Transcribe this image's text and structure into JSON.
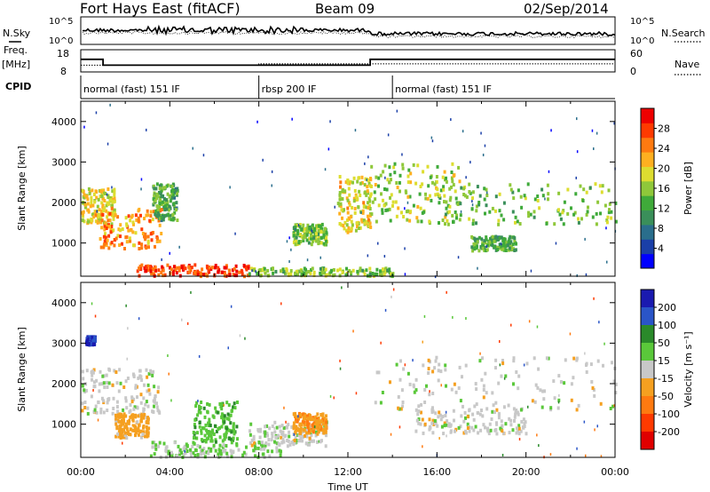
{
  "header": {
    "station": "Fort Hays East (fitACF)",
    "beam": "Beam 09",
    "date": "02/Sep/2014"
  },
  "summary": {
    "nsky_label": "N.Sky",
    "nsearch_label": "N.Search",
    "noise_ticks": [
      "10^5",
      "10^0"
    ],
    "freq_label": "Freq.",
    "freq_unit": "[MHz]",
    "freq_ticks": [
      "18",
      "8"
    ],
    "nave_label": "Nave",
    "nave_ticks": [
      "60",
      "0"
    ],
    "cpid_label": "CPID",
    "cpid_segments": [
      {
        "label": "normal (fast) 151 IF",
        "start_hour": 0
      },
      {
        "label": "rbsp 200 IF",
        "start_hour": 8
      },
      {
        "label": "normal (fast) 151 IF",
        "start_hour": 14
      }
    ],
    "freq_series": {
      "hours": [
        0,
        1,
        1,
        13,
        13,
        24
      ],
      "mhz": [
        14,
        14,
        11,
        11,
        14,
        14
      ]
    },
    "nave_series": {
      "hours": [
        0,
        8,
        8,
        24
      ],
      "value": [
        18,
        18,
        22,
        22
      ]
    }
  },
  "chart_data": [
    {
      "type": "heatmap",
      "parameter": "power",
      "ylabel": "Slant Range [km]",
      "xlim": [
        0,
        24
      ],
      "ylim": [
        180,
        4500
      ],
      "yticks": [
        1000,
        2000,
        3000,
        4000
      ],
      "colorbar": {
        "label": "Power [dB]",
        "ticks": [
          "28",
          "24",
          "20",
          "16",
          "12",
          "8",
          "4"
        ],
        "colors": [
          "#0000ff",
          "#1a3fa8",
          "#2a6e8c",
          "#3a8f5a",
          "#3faa3a",
          "#8fc83a",
          "#dddd30",
          "#ffb020",
          "#ff7a10",
          "#ff3a00",
          "#ee0000"
        ]
      },
      "echo_regions": [
        {
          "t": [
            0.0,
            1.5
          ],
          "r": [
            1500,
            2400
          ],
          "v": 18
        },
        {
          "t": [
            0.8,
            3.6
          ],
          "r": [
            900,
            1900
          ],
          "v": 22
        },
        {
          "t": [
            3.2,
            4.3
          ],
          "r": [
            1600,
            2500
          ],
          "v": 12
        },
        {
          "t": [
            2.5,
            7.5
          ],
          "r": [
            220,
            500
          ],
          "v": 26
        },
        {
          "t": [
            7.5,
            14.0
          ],
          "r": [
            220,
            420
          ],
          "v": 14
        },
        {
          "t": [
            9.5,
            11.0
          ],
          "r": [
            1000,
            1500
          ],
          "v": 14
        },
        {
          "t": [
            11.5,
            13.0
          ],
          "r": [
            1300,
            2700
          ],
          "v": 18
        },
        {
          "t": [
            13.0,
            17.0
          ],
          "r": [
            1500,
            3000
          ],
          "v": 16
        },
        {
          "t": [
            16.0,
            24.0
          ],
          "r": [
            1500,
            2500
          ],
          "v": 14
        },
        {
          "t": [
            17.5,
            19.5
          ],
          "r": [
            850,
            1200
          ],
          "v": 12
        }
      ]
    },
    {
      "type": "heatmap",
      "parameter": "velocity",
      "xlabel": "Time UT",
      "ylabel": "Slant Range [km]",
      "xlim": [
        0,
        24
      ],
      "ylim": [
        180,
        4500
      ],
      "xticks": [
        "00:00",
        "04:00",
        "08:00",
        "12:00",
        "16:00",
        "20:00",
        "00:00"
      ],
      "yticks": [
        1000,
        2000,
        3000,
        4000
      ],
      "colorbar": {
        "label": "Velocity [m s⁻¹]",
        "ticks": [
          "200",
          "100",
          "50",
          "15",
          "-15",
          "-50",
          "-100",
          "-200"
        ],
        "colors": [
          "#1a1ab0",
          "#2a55c8",
          "#2a8a2a",
          "#5ac83a",
          "#c8c8c8",
          "#f5a020",
          "#ff7a10",
          "#ff3a00",
          "#e00000"
        ]
      },
      "echo_regions": [
        {
          "t": [
            0.0,
            3.5
          ],
          "r": [
            1300,
            2400
          ],
          "v": 0
        },
        {
          "t": [
            0.2,
            0.6
          ],
          "r": [
            3000,
            3200
          ],
          "v": 200
        },
        {
          "t": [
            1.5,
            3.0
          ],
          "r": [
            700,
            1300
          ],
          "v": -30
        },
        {
          "t": [
            5.0,
            7.0
          ],
          "r": [
            600,
            1600
          ],
          "v": 40
        },
        {
          "t": [
            3.0,
            9.0
          ],
          "r": [
            220,
            600
          ],
          "v": 20
        },
        {
          "t": [
            7.5,
            11.0
          ],
          "r": [
            500,
            1100
          ],
          "v": 0
        },
        {
          "t": [
            9.5,
            11.0
          ],
          "r": [
            800,
            1300
          ],
          "v": -40
        },
        {
          "t": [
            13.0,
            24.0
          ],
          "r": [
            1400,
            2700
          ],
          "v": 0
        },
        {
          "t": [
            15.0,
            20.0
          ],
          "r": [
            800,
            1400
          ],
          "v": 0
        }
      ]
    }
  ]
}
